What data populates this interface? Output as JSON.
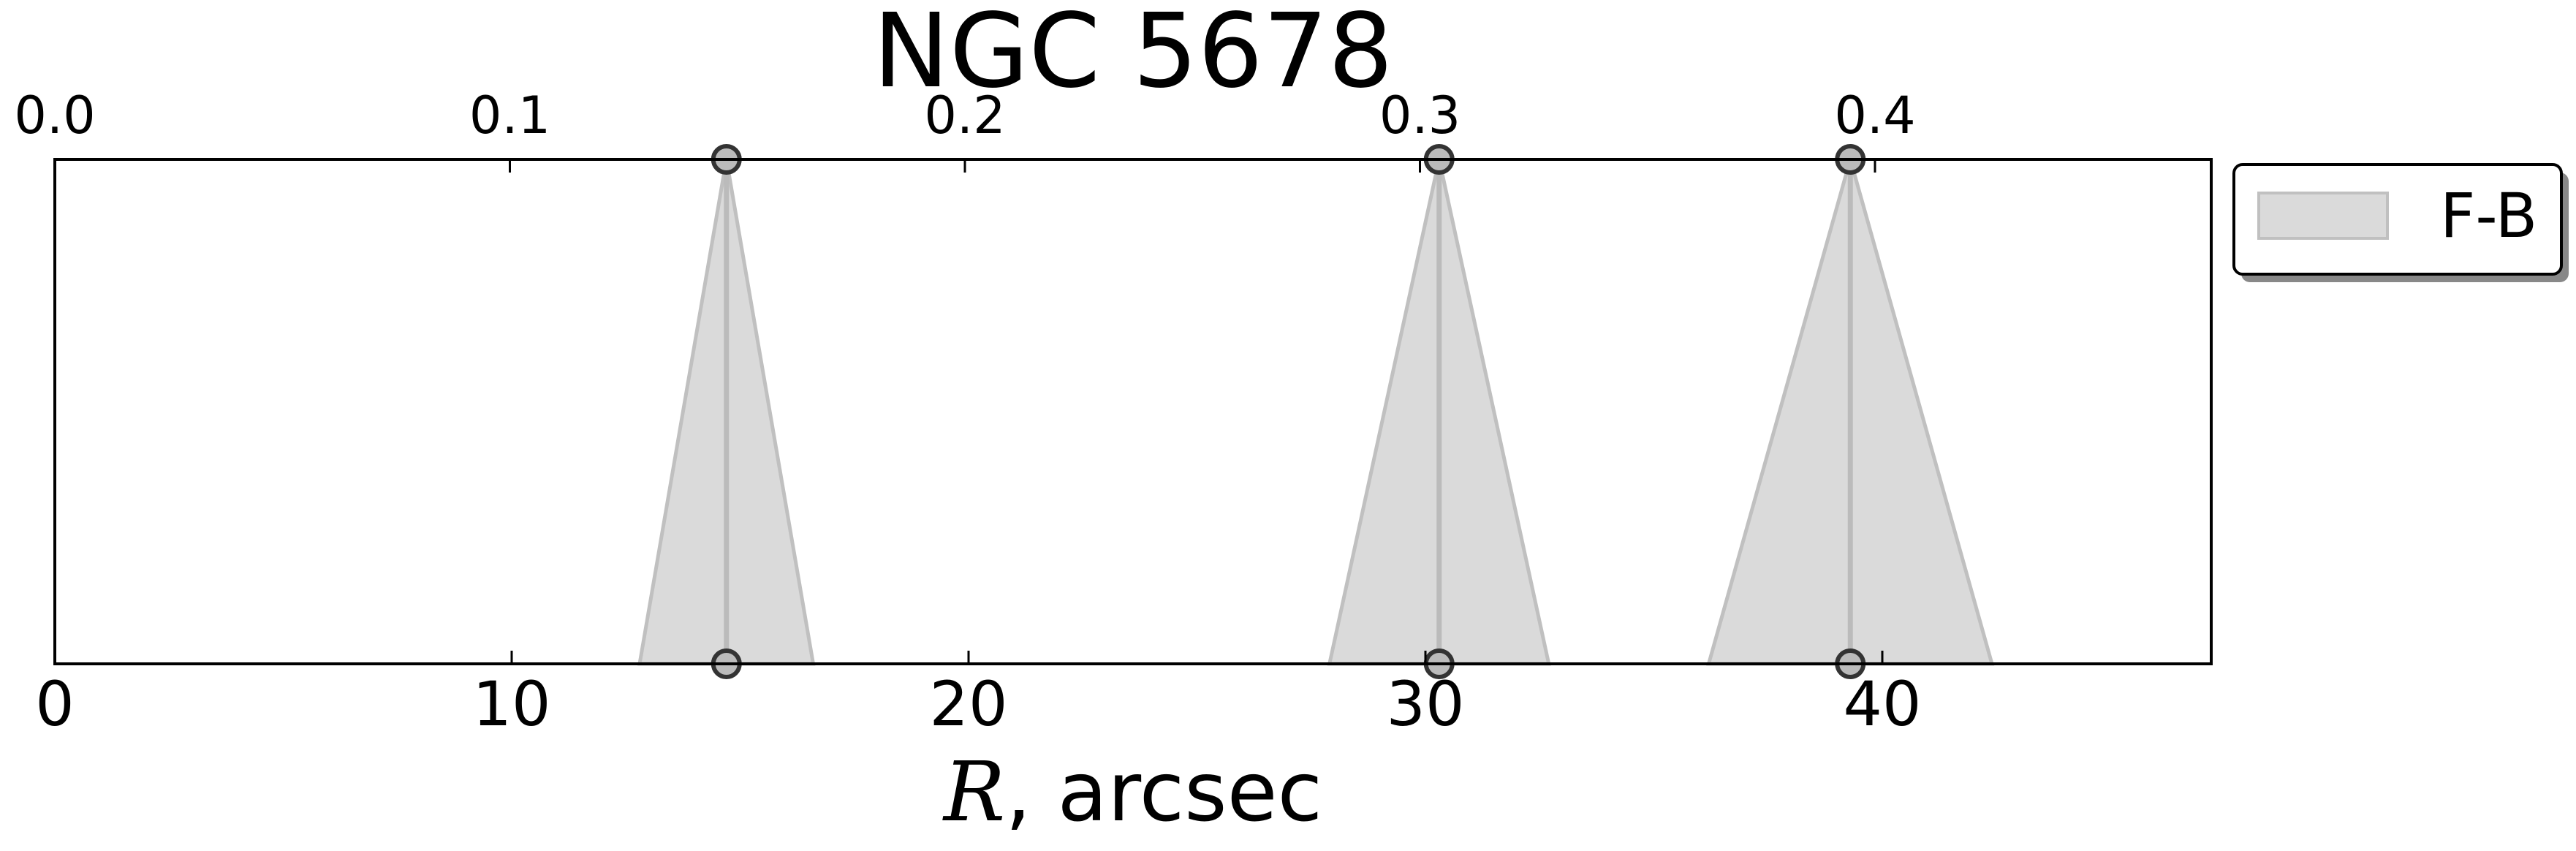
{
  "chart_data": {
    "type": "area",
    "title": "NGC 5678",
    "xlabel": "R, arcsec",
    "xlabel_var": "R",
    "xlabel_rest": ", arcsec",
    "xlim": [
      0,
      47.2
    ],
    "ylim": [
      0,
      1
    ],
    "grid": false,
    "x_ticks": [
      0,
      10,
      20,
      30,
      40
    ],
    "x_tick_labels": [
      "0",
      "10",
      "20",
      "30",
      "40"
    ],
    "top_axis": {
      "ticks": [
        0.0,
        0.1,
        0.2,
        0.3,
        0.4
      ],
      "tick_labels": [
        "0.0",
        "0.1",
        "0.2",
        "0.3",
        "0.4"
      ],
      "positions_in_bottom_units": [
        0,
        9.96,
        19.92,
        29.88,
        39.84
      ]
    },
    "legend": {
      "placement": "outside-top-right",
      "entries": [
        "F-B"
      ]
    },
    "series": [
      {
        "name": "F-B",
        "color": "#c0c0c0",
        "fill": "#dadada",
        "features": [
          {
            "center": 14.7,
            "half_width_at_base": 1.9
          },
          {
            "center": 30.3,
            "half_width_at_base": 2.4
          },
          {
            "center": 39.3,
            "half_width_at_base": 3.1
          }
        ]
      }
    ]
  }
}
